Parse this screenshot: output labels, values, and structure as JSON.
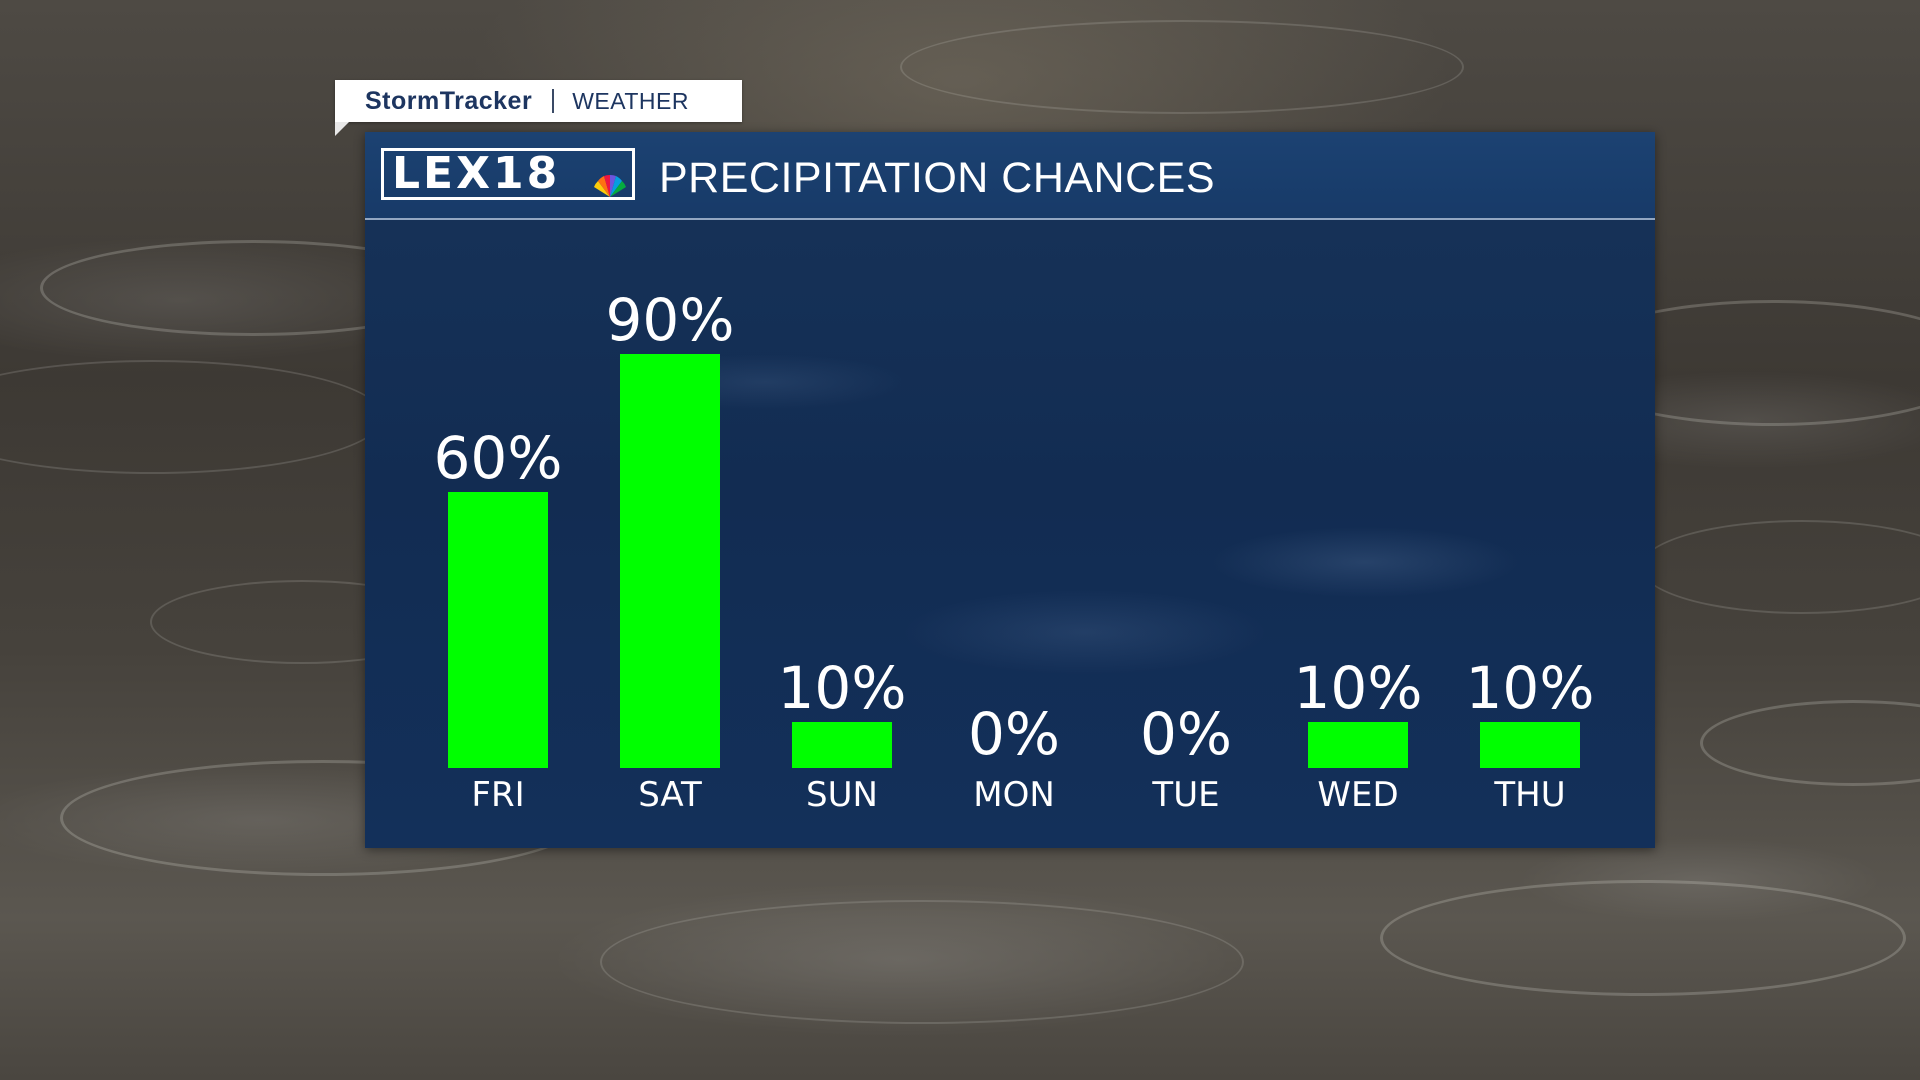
{
  "brand": {
    "tag_name": "StormTracker",
    "tag_sub": "WEATHER",
    "logo_text": "LEX18"
  },
  "panel": {
    "title": "PRECIPITATION CHANCES"
  },
  "colors": {
    "bar": "#00ff00",
    "panel": "#122c52",
    "text": "#ffffff"
  },
  "chart_data": {
    "type": "bar",
    "title": "PRECIPITATION CHANCES",
    "categories": [
      "FRI",
      "SAT",
      "SUN",
      "MON",
      "TUE",
      "WED",
      "THU"
    ],
    "values": [
      60,
      90,
      10,
      0,
      0,
      10,
      10
    ],
    "value_labels": [
      "60%",
      "90%",
      "10%",
      "0%",
      "0%",
      "10%",
      "10%"
    ],
    "unit": "%",
    "ylim": [
      0,
      100
    ],
    "grid": false,
    "legend": "none"
  }
}
